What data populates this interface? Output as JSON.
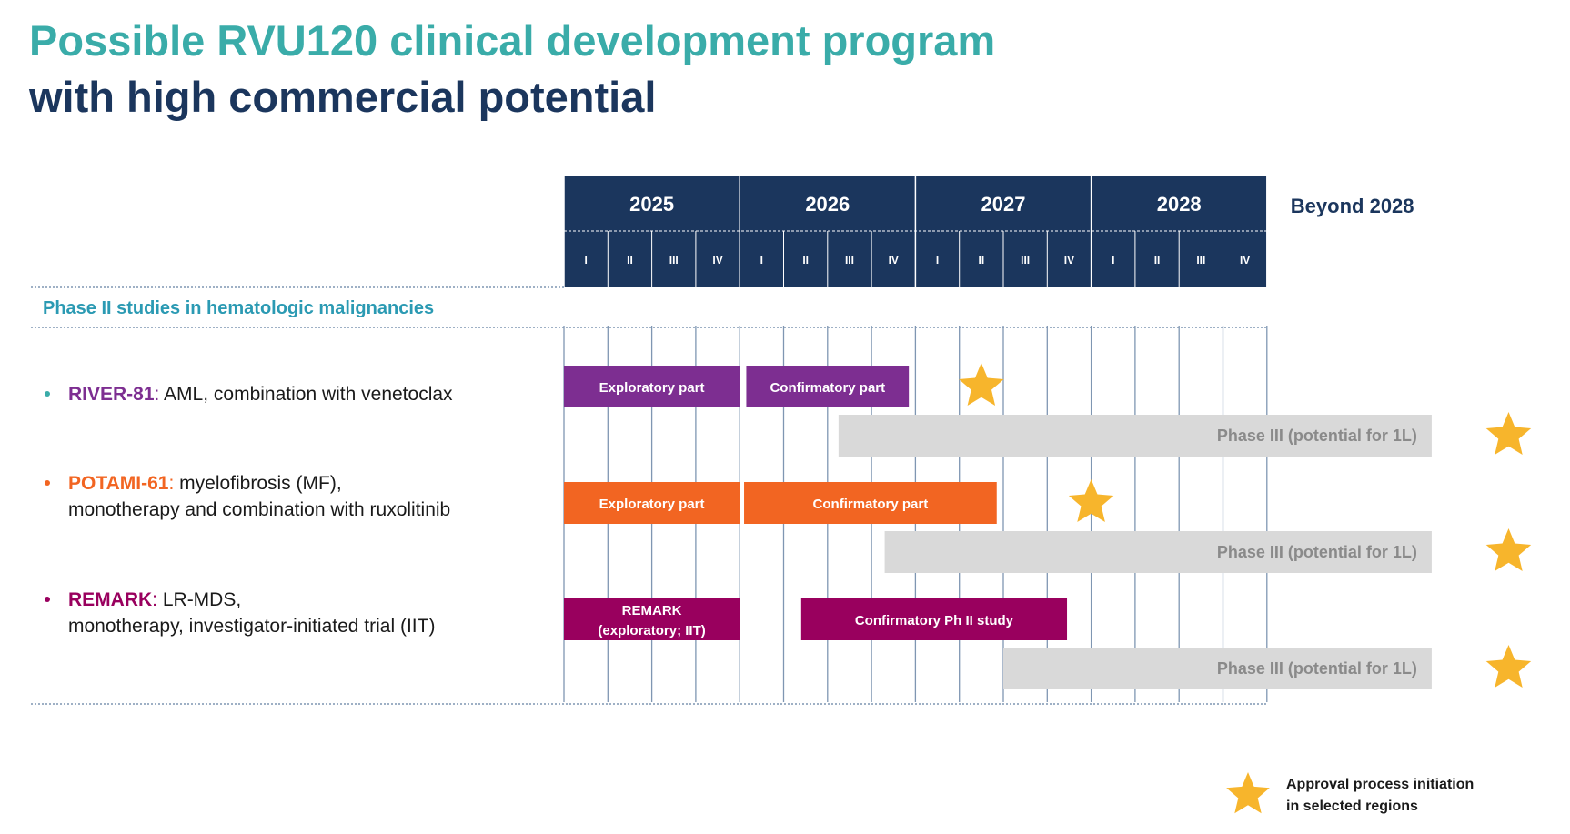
{
  "title": {
    "line1": "Possible RVU120 clinical development program",
    "line2": "with high commercial potential"
  },
  "colors": {
    "navy": "#1b365d",
    "teal": "#3aaca9",
    "section_teal": "#2b9ab3",
    "purple": "#7d2e91",
    "orange": "#f26522",
    "magenta": "#99005e",
    "grey_bar": "#d9d9d9",
    "grey_text": "#8a8a8a",
    "star": "#f7b52c",
    "grid": "#7f96b2"
  },
  "timeline": {
    "years": [
      "2025",
      "2026",
      "2027",
      "2028"
    ],
    "quarters": [
      "I",
      "II",
      "III",
      "IV"
    ],
    "beyond_label": "Beyond 2028"
  },
  "section_label": "Phase II studies in hematologic malignancies",
  "studies": [
    {
      "name": "RIVER-81",
      "name_color": "#7d2e91",
      "bullet_color": "#3aaca9",
      "desc_lines": [
        "AML, combination with venetoclax"
      ]
    },
    {
      "name": "POTAMI-61",
      "name_color": "#f26522",
      "bullet_color": "#f26522",
      "desc_lines": [
        "myelofibrosis (MF),",
        "monotherapy and combination with ruxolitinib"
      ]
    },
    {
      "name": "REMARK",
      "name_color": "#99005e",
      "bullet_color": "#99005e",
      "desc_lines": [
        "LR-MDS,",
        "monotherapy, investigator-initiated trial (IIT)"
      ]
    }
  ],
  "bars": [
    {
      "row": 0,
      "lane": 0,
      "start_q": 0,
      "end_q": 4,
      "color": "#7d2e91",
      "text_color": "#ffffff",
      "labels": [
        "Exploratory part"
      ]
    },
    {
      "row": 0,
      "lane": 0,
      "start_q": 4.15,
      "end_q": 7.85,
      "color": "#7d2e91",
      "text_color": "#ffffff",
      "labels": [
        "Confirmatory part"
      ]
    },
    {
      "row": 0,
      "lane": 1,
      "start_q": 6.25,
      "end_q": 19.75,
      "color": "#d9d9d9",
      "text_color": "#8a8a8a",
      "labels": [
        "Phase III (potential for 1L)"
      ],
      "align": "right"
    },
    {
      "row": 1,
      "lane": 0,
      "start_q": 0,
      "end_q": 4,
      "color": "#f26522",
      "text_color": "#ffffff",
      "labels": [
        "Exploratory part"
      ]
    },
    {
      "row": 1,
      "lane": 0,
      "start_q": 4.1,
      "end_q": 9.85,
      "color": "#f26522",
      "text_color": "#ffffff",
      "labels": [
        "Confirmatory part"
      ]
    },
    {
      "row": 1,
      "lane": 1,
      "start_q": 7.3,
      "end_q": 19.75,
      "color": "#d9d9d9",
      "text_color": "#8a8a8a",
      "labels": [
        "Phase III (potential for 1L)"
      ],
      "align": "right"
    },
    {
      "row": 2,
      "lane": 0,
      "start_q": 0,
      "end_q": 4,
      "color": "#99005e",
      "text_color": "#ffffff",
      "labels": [
        "REMARK",
        "(exploratory; IIT)"
      ]
    },
    {
      "row": 2,
      "lane": 0,
      "start_q": 5.4,
      "end_q": 11.45,
      "color": "#99005e",
      "text_color": "#ffffff",
      "labels": [
        "Confirmatory Ph II study"
      ]
    },
    {
      "row": 2,
      "lane": 1,
      "start_q": 10.0,
      "end_q": 19.75,
      "color": "#d9d9d9",
      "text_color": "#8a8a8a",
      "labels": [
        "Phase III (potential for 1L)"
      ],
      "align": "right"
    }
  ],
  "stars": [
    {
      "row": 0,
      "lane": 0,
      "q": 9.5
    },
    {
      "row": 0,
      "lane": 1,
      "q": 21.5
    },
    {
      "row": 1,
      "lane": 0,
      "q": 12.0
    },
    {
      "row": 1,
      "lane": 1,
      "q": 21.5
    },
    {
      "row": 2,
      "lane": 1,
      "q": 21.5
    }
  ],
  "legend": {
    "lines": [
      "Approval process initiation",
      "in selected regions"
    ]
  }
}
